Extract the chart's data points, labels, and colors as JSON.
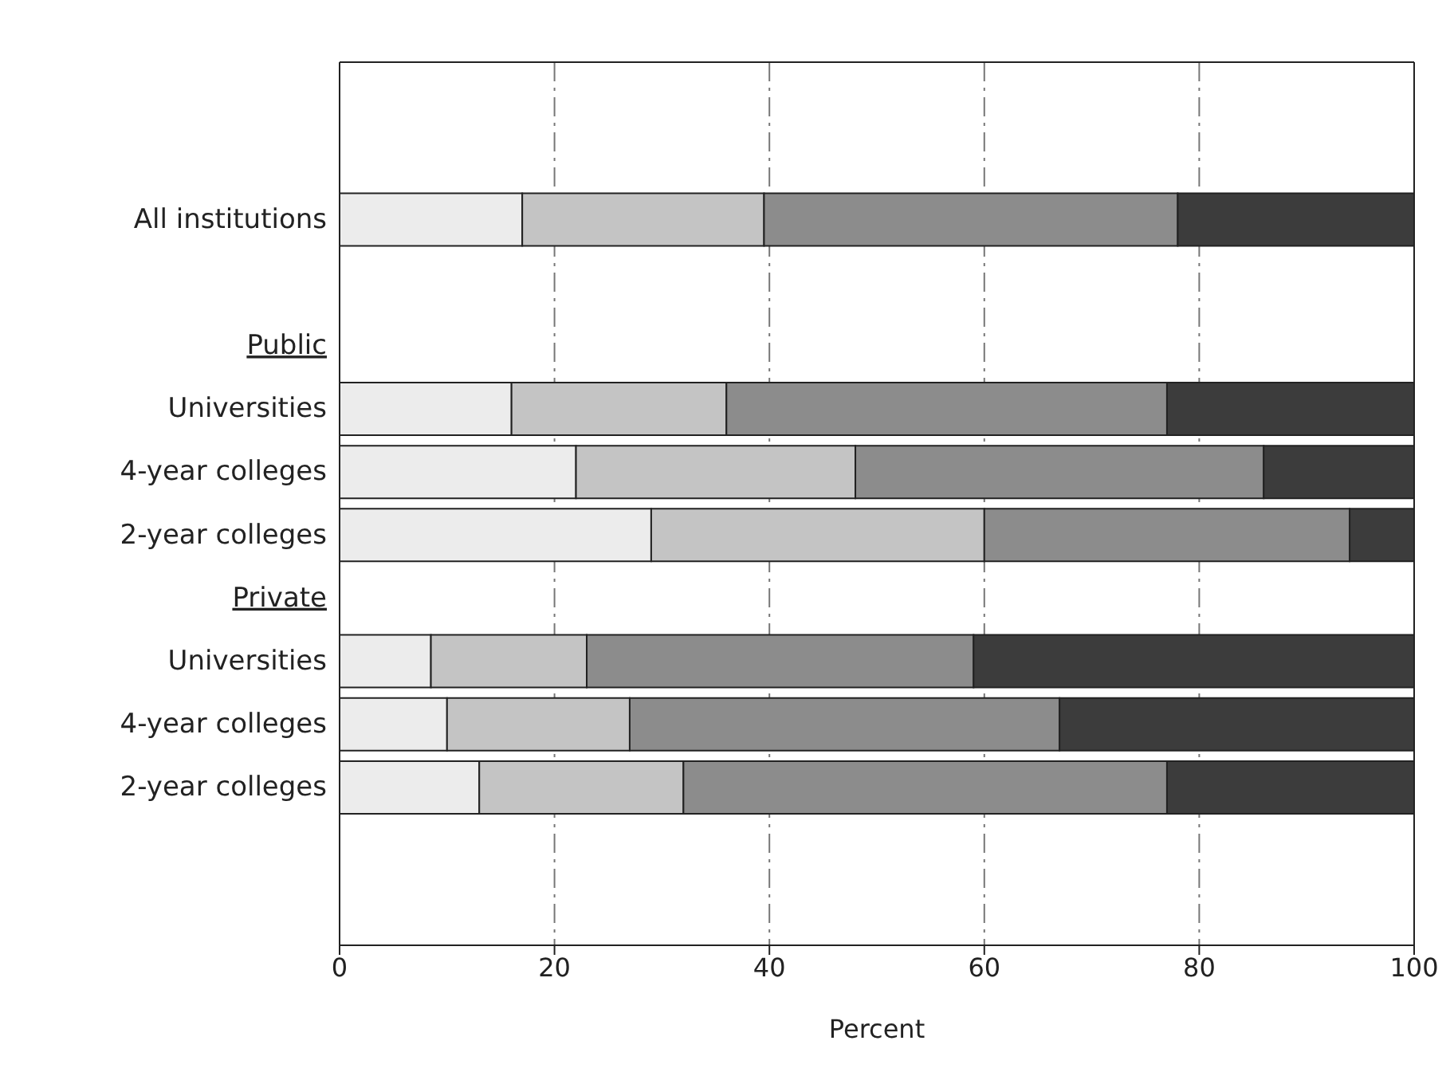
{
  "chart_data": {
    "type": "bar",
    "orientation": "horizontal",
    "stacked": true,
    "xlabel": "Percent",
    "categories": [
      null,
      null,
      "All institutions",
      null,
      "Public",
      "Universities",
      "4-year colleges",
      "2-year colleges",
      "Private",
      "Universities",
      "4-year colleges",
      "2-year colleges",
      null,
      null
    ],
    "series": [
      {
        "color": "#ececec",
        "values": [
          null,
          null,
          17,
          null,
          null,
          16,
          22,
          29,
          null,
          8.5,
          10,
          13,
          null,
          null
        ]
      },
      {
        "color": "#c4c4c4",
        "values": [
          null,
          null,
          22.5,
          null,
          null,
          20,
          26,
          31,
          null,
          14.5,
          17,
          19,
          null,
          null
        ]
      },
      {
        "color": "#8c8c8c",
        "values": [
          null,
          null,
          38.5,
          null,
          null,
          41,
          38,
          34,
          null,
          36,
          40,
          45,
          null,
          null
        ]
      },
      {
        "color": "#3c3c3c",
        "values": [
          null,
          null,
          22,
          null,
          null,
          23,
          14,
          6,
          null,
          41,
          33,
          23,
          null,
          null
        ]
      }
    ],
    "xlim": [
      0,
      100
    ],
    "xticks": [
      0,
      20,
      40,
      60,
      80,
      100
    ],
    "grid": "x",
    "legend": false
  }
}
